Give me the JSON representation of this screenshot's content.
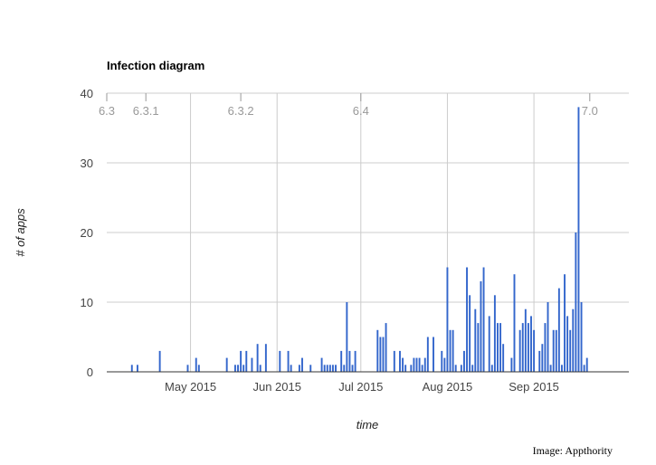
{
  "chart_data": {
    "type": "bar",
    "title": "Infection diagram",
    "xlabel": "time",
    "ylabel": "# of apps",
    "ylim": [
      0,
      40
    ],
    "yticks": [
      0,
      10,
      20,
      30,
      40
    ],
    "xlim": [
      "2015-04-01",
      "2015-10-05"
    ],
    "xticks": [
      {
        "date": "2015-05-01",
        "label": "May 2015"
      },
      {
        "date": "2015-06-01",
        "label": "Jun 2015"
      },
      {
        "date": "2015-07-01",
        "label": "Jul 2015"
      },
      {
        "date": "2015-08-01",
        "label": "Aug 2015"
      },
      {
        "date": "2015-09-01",
        "label": "Sep 2015"
      }
    ],
    "release_markers": [
      {
        "label": "6.3",
        "date": "2015-04-01"
      },
      {
        "label": "6.3.1",
        "date": "2015-04-15"
      },
      {
        "label": "6.3.2",
        "date": "2015-05-19"
      },
      {
        "label": "6.4",
        "date": "2015-07-01"
      },
      {
        "label": "7.0",
        "date": "2015-09-21"
      }
    ],
    "grid": true,
    "color": "#3366cc",
    "points": [
      {
        "x": "2015-04-10",
        "y": 1
      },
      {
        "x": "2015-04-12",
        "y": 1
      },
      {
        "x": "2015-04-20",
        "y": 3
      },
      {
        "x": "2015-04-30",
        "y": 1
      },
      {
        "x": "2015-05-03",
        "y": 2
      },
      {
        "x": "2015-05-04",
        "y": 1
      },
      {
        "x": "2015-05-14",
        "y": 2
      },
      {
        "x": "2015-05-17",
        "y": 1
      },
      {
        "x": "2015-05-18",
        "y": 1
      },
      {
        "x": "2015-05-19",
        "y": 3
      },
      {
        "x": "2015-05-20",
        "y": 1
      },
      {
        "x": "2015-05-21",
        "y": 3
      },
      {
        "x": "2015-05-23",
        "y": 2
      },
      {
        "x": "2015-05-25",
        "y": 4
      },
      {
        "x": "2015-05-26",
        "y": 1
      },
      {
        "x": "2015-05-28",
        "y": 4
      },
      {
        "x": "2015-06-02",
        "y": 3
      },
      {
        "x": "2015-06-05",
        "y": 3
      },
      {
        "x": "2015-06-06",
        "y": 1
      },
      {
        "x": "2015-06-09",
        "y": 1
      },
      {
        "x": "2015-06-10",
        "y": 2
      },
      {
        "x": "2015-06-13",
        "y": 1
      },
      {
        "x": "2015-06-17",
        "y": 2
      },
      {
        "x": "2015-06-18",
        "y": 1
      },
      {
        "x": "2015-06-19",
        "y": 1
      },
      {
        "x": "2015-06-20",
        "y": 1
      },
      {
        "x": "2015-06-21",
        "y": 1
      },
      {
        "x": "2015-06-22",
        "y": 1
      },
      {
        "x": "2015-06-24",
        "y": 3
      },
      {
        "x": "2015-06-25",
        "y": 1
      },
      {
        "x": "2015-06-26",
        "y": 10
      },
      {
        "x": "2015-06-27",
        "y": 3
      },
      {
        "x": "2015-06-28",
        "y": 1
      },
      {
        "x": "2015-06-29",
        "y": 3
      },
      {
        "x": "2015-07-07",
        "y": 6
      },
      {
        "x": "2015-07-08",
        "y": 5
      },
      {
        "x": "2015-07-09",
        "y": 5
      },
      {
        "x": "2015-07-10",
        "y": 7
      },
      {
        "x": "2015-07-13",
        "y": 3
      },
      {
        "x": "2015-07-15",
        "y": 3
      },
      {
        "x": "2015-07-16",
        "y": 2
      },
      {
        "x": "2015-07-17",
        "y": 1
      },
      {
        "x": "2015-07-19",
        "y": 1
      },
      {
        "x": "2015-07-20",
        "y": 2
      },
      {
        "x": "2015-07-21",
        "y": 2
      },
      {
        "x": "2015-07-22",
        "y": 2
      },
      {
        "x": "2015-07-23",
        "y": 1
      },
      {
        "x": "2015-07-24",
        "y": 2
      },
      {
        "x": "2015-07-25",
        "y": 5
      },
      {
        "x": "2015-07-27",
        "y": 5
      },
      {
        "x": "2015-07-30",
        "y": 3
      },
      {
        "x": "2015-07-31",
        "y": 2
      },
      {
        "x": "2015-08-01",
        "y": 15
      },
      {
        "x": "2015-08-02",
        "y": 6
      },
      {
        "x": "2015-08-03",
        "y": 6
      },
      {
        "x": "2015-08-04",
        "y": 1
      },
      {
        "x": "2015-08-06",
        "y": 1
      },
      {
        "x": "2015-08-07",
        "y": 3
      },
      {
        "x": "2015-08-08",
        "y": 15
      },
      {
        "x": "2015-08-09",
        "y": 11
      },
      {
        "x": "2015-08-10",
        "y": 1
      },
      {
        "x": "2015-08-11",
        "y": 9
      },
      {
        "x": "2015-08-12",
        "y": 7
      },
      {
        "x": "2015-08-13",
        "y": 13
      },
      {
        "x": "2015-08-14",
        "y": 15
      },
      {
        "x": "2015-08-16",
        "y": 8
      },
      {
        "x": "2015-08-17",
        "y": 1
      },
      {
        "x": "2015-08-18",
        "y": 11
      },
      {
        "x": "2015-08-19",
        "y": 7
      },
      {
        "x": "2015-08-20",
        "y": 7
      },
      {
        "x": "2015-08-21",
        "y": 4
      },
      {
        "x": "2015-08-24",
        "y": 2
      },
      {
        "x": "2015-08-25",
        "y": 14
      },
      {
        "x": "2015-08-27",
        "y": 6
      },
      {
        "x": "2015-08-28",
        "y": 7
      },
      {
        "x": "2015-08-29",
        "y": 9
      },
      {
        "x": "2015-08-30",
        "y": 7
      },
      {
        "x": "2015-08-31",
        "y": 8
      },
      {
        "x": "2015-09-01",
        "y": 6
      },
      {
        "x": "2015-09-03",
        "y": 3
      },
      {
        "x": "2015-09-04",
        "y": 4
      },
      {
        "x": "2015-09-05",
        "y": 7
      },
      {
        "x": "2015-09-06",
        "y": 10
      },
      {
        "x": "2015-09-07",
        "y": 1
      },
      {
        "x": "2015-09-08",
        "y": 6
      },
      {
        "x": "2015-09-09",
        "y": 6
      },
      {
        "x": "2015-09-10",
        "y": 12
      },
      {
        "x": "2015-09-11",
        "y": 1
      },
      {
        "x": "2015-09-12",
        "y": 14
      },
      {
        "x": "2015-09-13",
        "y": 8
      },
      {
        "x": "2015-09-14",
        "y": 6
      },
      {
        "x": "2015-09-15",
        "y": 9
      },
      {
        "x": "2015-09-16",
        "y": 20
      },
      {
        "x": "2015-09-17",
        "y": 38
      },
      {
        "x": "2015-09-18",
        "y": 10
      },
      {
        "x": "2015-09-19",
        "y": 1
      },
      {
        "x": "2015-09-20",
        "y": 2
      }
    ]
  },
  "credit": "Image: Appthority"
}
